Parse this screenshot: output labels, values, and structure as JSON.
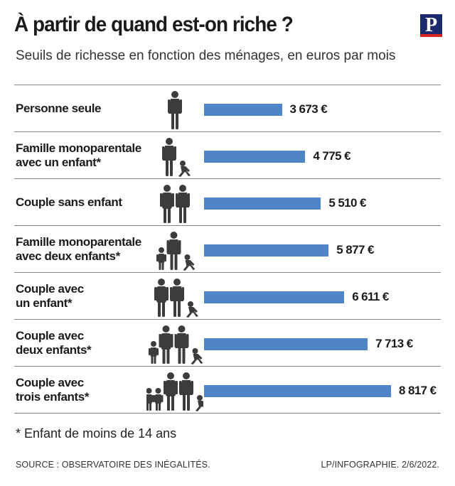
{
  "header": {
    "title": "À partir de quand est-on riche ?",
    "subtitle": "Seuils de richesse en fonction des ménages, en euros par mois",
    "logo_letter": "P"
  },
  "chart_data": {
    "type": "bar",
    "orientation": "horizontal",
    "title": "À partir de quand est-on riche ?",
    "subtitle": "Seuils de richesse en fonction des ménages, en euros par mois",
    "unit": "€ par mois",
    "categories": [
      "Personne seule",
      "Famille monoparentale\navec un enfant*",
      "Couple sans enfant",
      "Famille monoparentale\navec deux enfants*",
      "Couple avec\nun enfant*",
      "Couple avec\ndeux enfants*",
      "Couple avec\ntrois enfants*"
    ],
    "values": [
      3673,
      4775,
      5510,
      5877,
      6611,
      7713,
      8817
    ],
    "value_labels": [
      "3 673 €",
      "4 775 €",
      "5 510 €",
      "5 877 €",
      "6 611 €",
      "7 713 €",
      "8 817 €"
    ],
    "bar_color": "#4f85c6",
    "icons": [
      {
        "adults": 1,
        "children": 0,
        "infants": 0
      },
      {
        "adults": 1,
        "children": 0,
        "infants": 1
      },
      {
        "adults": 2,
        "children": 0,
        "infants": 0
      },
      {
        "adults": 1,
        "children": 1,
        "infants": 1
      },
      {
        "adults": 2,
        "children": 0,
        "infants": 1
      },
      {
        "adults": 2,
        "children": 1,
        "infants": 1
      },
      {
        "adults": 2,
        "children": 2,
        "infants": 1
      }
    ]
  },
  "footer": {
    "footnote": "* Enfant de moins de 14 ans",
    "source": "SOURCE : OBSERVATOIRE DES INÉGALITÉS.",
    "credit": "LP/INFOGRAPHIE.  2/6/2022."
  },
  "colors": {
    "bar": "#4f85c6",
    "logo_bg": "#1a2a6c",
    "logo_accent": "#d7261e",
    "figure": "#3c3c3c"
  }
}
